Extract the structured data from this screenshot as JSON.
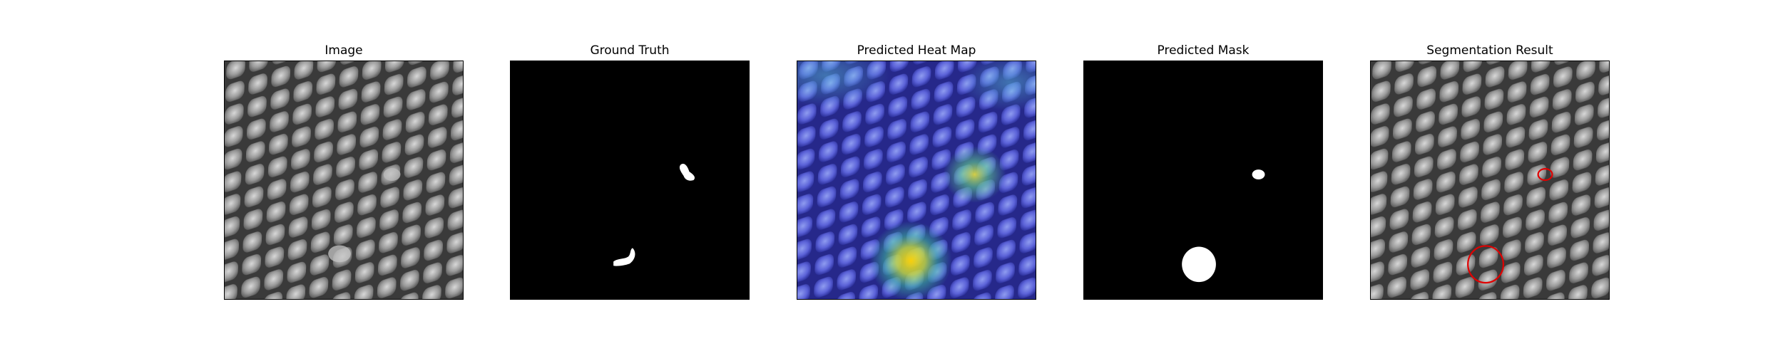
{
  "figure": {
    "panels": [
      {
        "key": "image",
        "title": "Image",
        "icon": "mesh-texture-photo"
      },
      {
        "key": "ground_truth",
        "title": "Ground Truth",
        "icon": "binary-mask"
      },
      {
        "key": "heatmap",
        "title": "Predicted Heat Map",
        "icon": "heatmap-overlay"
      },
      {
        "key": "pred_mask",
        "title": "Predicted Mask",
        "icon": "binary-mask"
      },
      {
        "key": "segmentation",
        "title": "Segmentation Result",
        "icon": "contour-overlay"
      }
    ],
    "colors": {
      "mask_background": "#000000",
      "mask_foreground": "#ffffff",
      "contour": "#e00000",
      "heat_low": "#2a2ad0",
      "heat_high": "#ffe000"
    }
  }
}
